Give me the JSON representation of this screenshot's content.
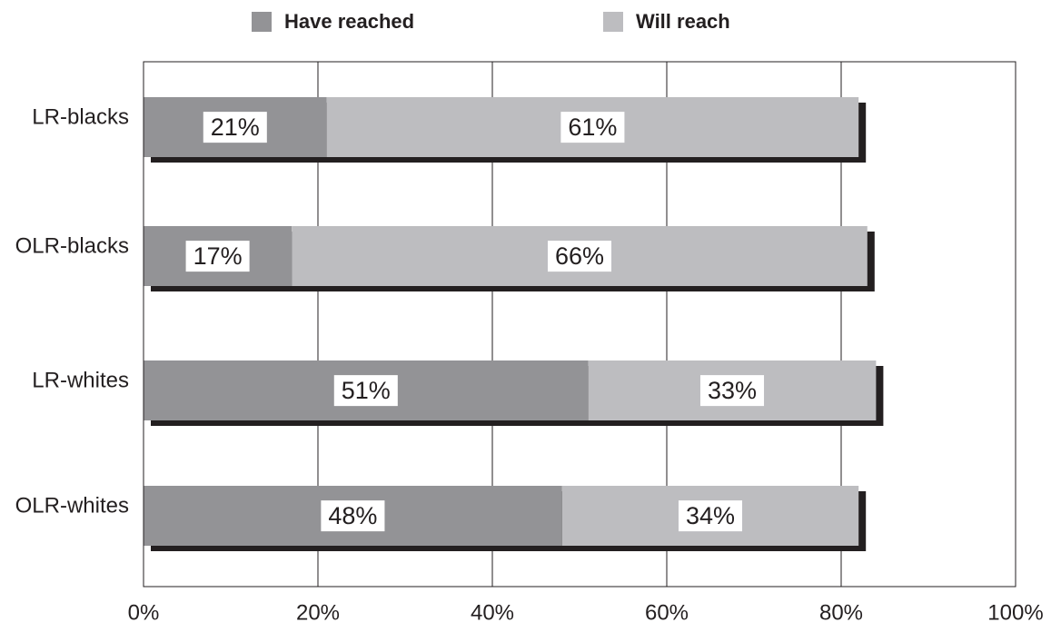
{
  "chart_data": {
    "type": "bar",
    "orientation": "horizontal",
    "stacked": true,
    "title": "",
    "xlabel": "",
    "ylabel": "",
    "categories": [
      "LR-blacks",
      "OLR-blacks",
      "LR-whites",
      "OLR-whites"
    ],
    "series": [
      {
        "name": "Have reached",
        "color": "#939396",
        "values": [
          21,
          17,
          51,
          48
        ],
        "labels": [
          "21%",
          "17%",
          "51%",
          "48%"
        ]
      },
      {
        "name": "Will reach",
        "color": "#bdbdc0",
        "values": [
          61,
          66,
          33,
          34
        ],
        "labels": [
          "61%",
          "66%",
          "33%",
          "34%"
        ]
      }
    ],
    "xlim": [
      0,
      100
    ],
    "x_ticks": [
      0,
      20,
      40,
      60,
      80,
      100
    ],
    "x_tick_labels": [
      "0%",
      "20%",
      "40%",
      "60%",
      "80%",
      "100%"
    ],
    "grid": "vertical",
    "legend_position": "top",
    "bar_shadow": true,
    "shadow_color": "#231f20",
    "gridline_color": "#231f20",
    "label_box_color": "#ffffff"
  }
}
